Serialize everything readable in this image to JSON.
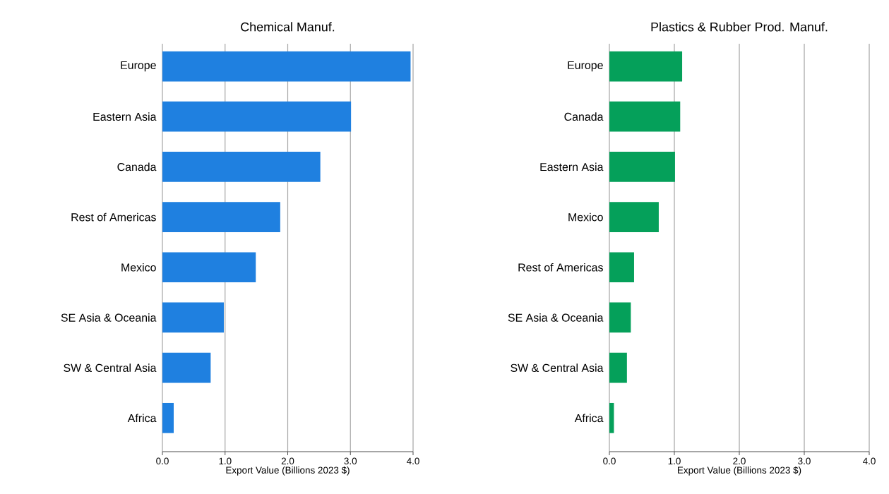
{
  "chart_data": [
    {
      "type": "bar",
      "orientation": "horizontal",
      "title": "Chemical Manuf.",
      "xlabel": "Export Value (Billions 2023 $)",
      "categories": [
        "Europe",
        "Eastern Asia",
        "Canada",
        "Rest of Americas",
        "Mexico",
        "SE Asia & Oceania",
        "SW & Central Asia",
        "Africa"
      ],
      "values": [
        3.96,
        3.01,
        2.52,
        1.88,
        1.49,
        0.98,
        0.77,
        0.18
      ],
      "color": "#1f80e0",
      "xlim": [
        0,
        4
      ],
      "xticks": [
        {
          "value": 0,
          "label": "0.0"
        },
        {
          "value": 1,
          "label": "1.0"
        },
        {
          "value": 2,
          "label": "2.0"
        },
        {
          "value": 3,
          "label": "3.0"
        },
        {
          "value": 4,
          "label": "4.0"
        }
      ],
      "grid": "x"
    },
    {
      "type": "bar",
      "orientation": "horizontal",
      "title": "Plastics & Rubber Prod. Manuf.",
      "xlabel": "Export Value (Billions 2023 $)",
      "categories": [
        "Europe",
        "Canada",
        "Eastern Asia",
        "Mexico",
        "Rest of Americas",
        "SE Asia & Oceania",
        "SW & Central Asia",
        "Africa"
      ],
      "values": [
        1.12,
        1.09,
        1.01,
        0.76,
        0.38,
        0.33,
        0.27,
        0.07
      ],
      "color": "#05a05a",
      "xlim": [
        0,
        4
      ],
      "xticks": [
        {
          "value": 0,
          "label": "0.0"
        },
        {
          "value": 1,
          "label": "1.0"
        },
        {
          "value": 2,
          "label": "2.0"
        },
        {
          "value": 3,
          "label": "3.0"
        },
        {
          "value": 4,
          "label": "4.0"
        }
      ],
      "grid": "x"
    }
  ]
}
